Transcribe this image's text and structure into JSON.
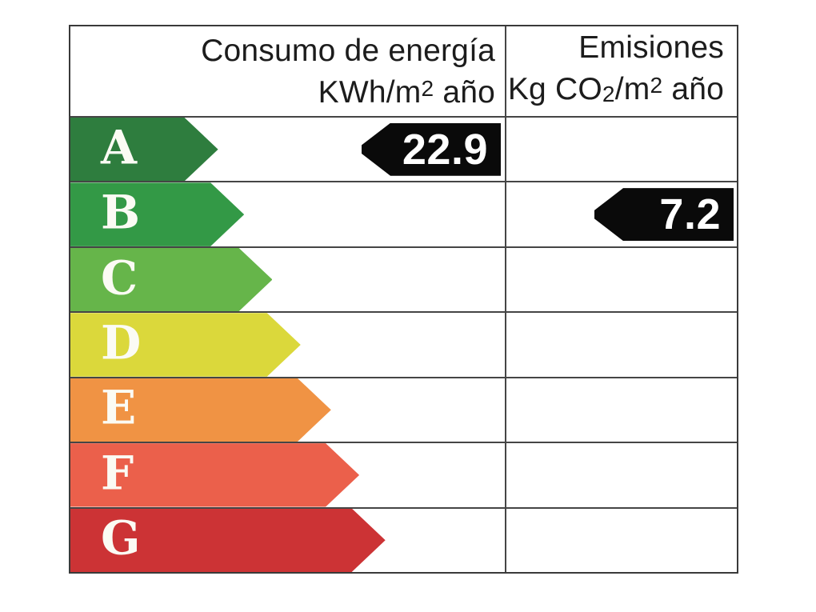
{
  "header": {
    "consumo": {
      "title": "Consumo de energía",
      "unit_prefix": "KWh/m",
      "unit_sup": "2",
      "unit_suffix": " año"
    },
    "emisiones": {
      "title": "Emisiones",
      "unit_prefix": "Kg CO",
      "unit_sub": "2",
      "unit_mid": "/m",
      "unit_sup": "2",
      "unit_suffix": " año"
    }
  },
  "ratings": [
    {
      "letter": "A",
      "color": "#2E7D3E",
      "width_pct": 34
    },
    {
      "letter": "B",
      "color": "#339946",
      "width_pct": 40
    },
    {
      "letter": "C",
      "color": "#66B54A",
      "width_pct": 46.5
    },
    {
      "letter": "D",
      "color": "#DBD83B",
      "width_pct": 53
    },
    {
      "letter": "E",
      "color": "#F09344",
      "width_pct": 60
    },
    {
      "letter": "F",
      "color": "#EB604B",
      "width_pct": 66.5
    },
    {
      "letter": "G",
      "color": "#CC3335",
      "width_pct": 72.5
    }
  ],
  "indicators": {
    "consumo_value": "22.9",
    "consumo_row": "A",
    "emisiones_value": "7.2",
    "emisiones_row": "B"
  },
  "colors": {
    "indicator_bg": "#0A0A0A",
    "indicator_text": "#FFFFFF",
    "grid_line": "#454545",
    "outer_border": "#3A3A3A",
    "letter_text": "#FBFBF4",
    "header_text": "#1C1C1C",
    "background": "#FFFFFF"
  },
  "chart_data": {
    "type": "table",
    "title": "Etiqueta de eficiencia energética",
    "columns": [
      "Consumo de energía KWh/m2 año",
      "Emisiones Kg CO2/m2 año"
    ],
    "rating_scale": [
      "A",
      "B",
      "C",
      "D",
      "E",
      "F",
      "G"
    ],
    "rating_colors": [
      "#2E7D3E",
      "#339946",
      "#66B54A",
      "#DBD83B",
      "#F09344",
      "#EB604B",
      "#CC3335"
    ],
    "values": {
      "consumo_kwh_m2_ano": 22.9,
      "consumo_rating": "A",
      "emisiones_kg_co2_m2_ano": 7.2,
      "emisiones_rating": "B"
    }
  }
}
